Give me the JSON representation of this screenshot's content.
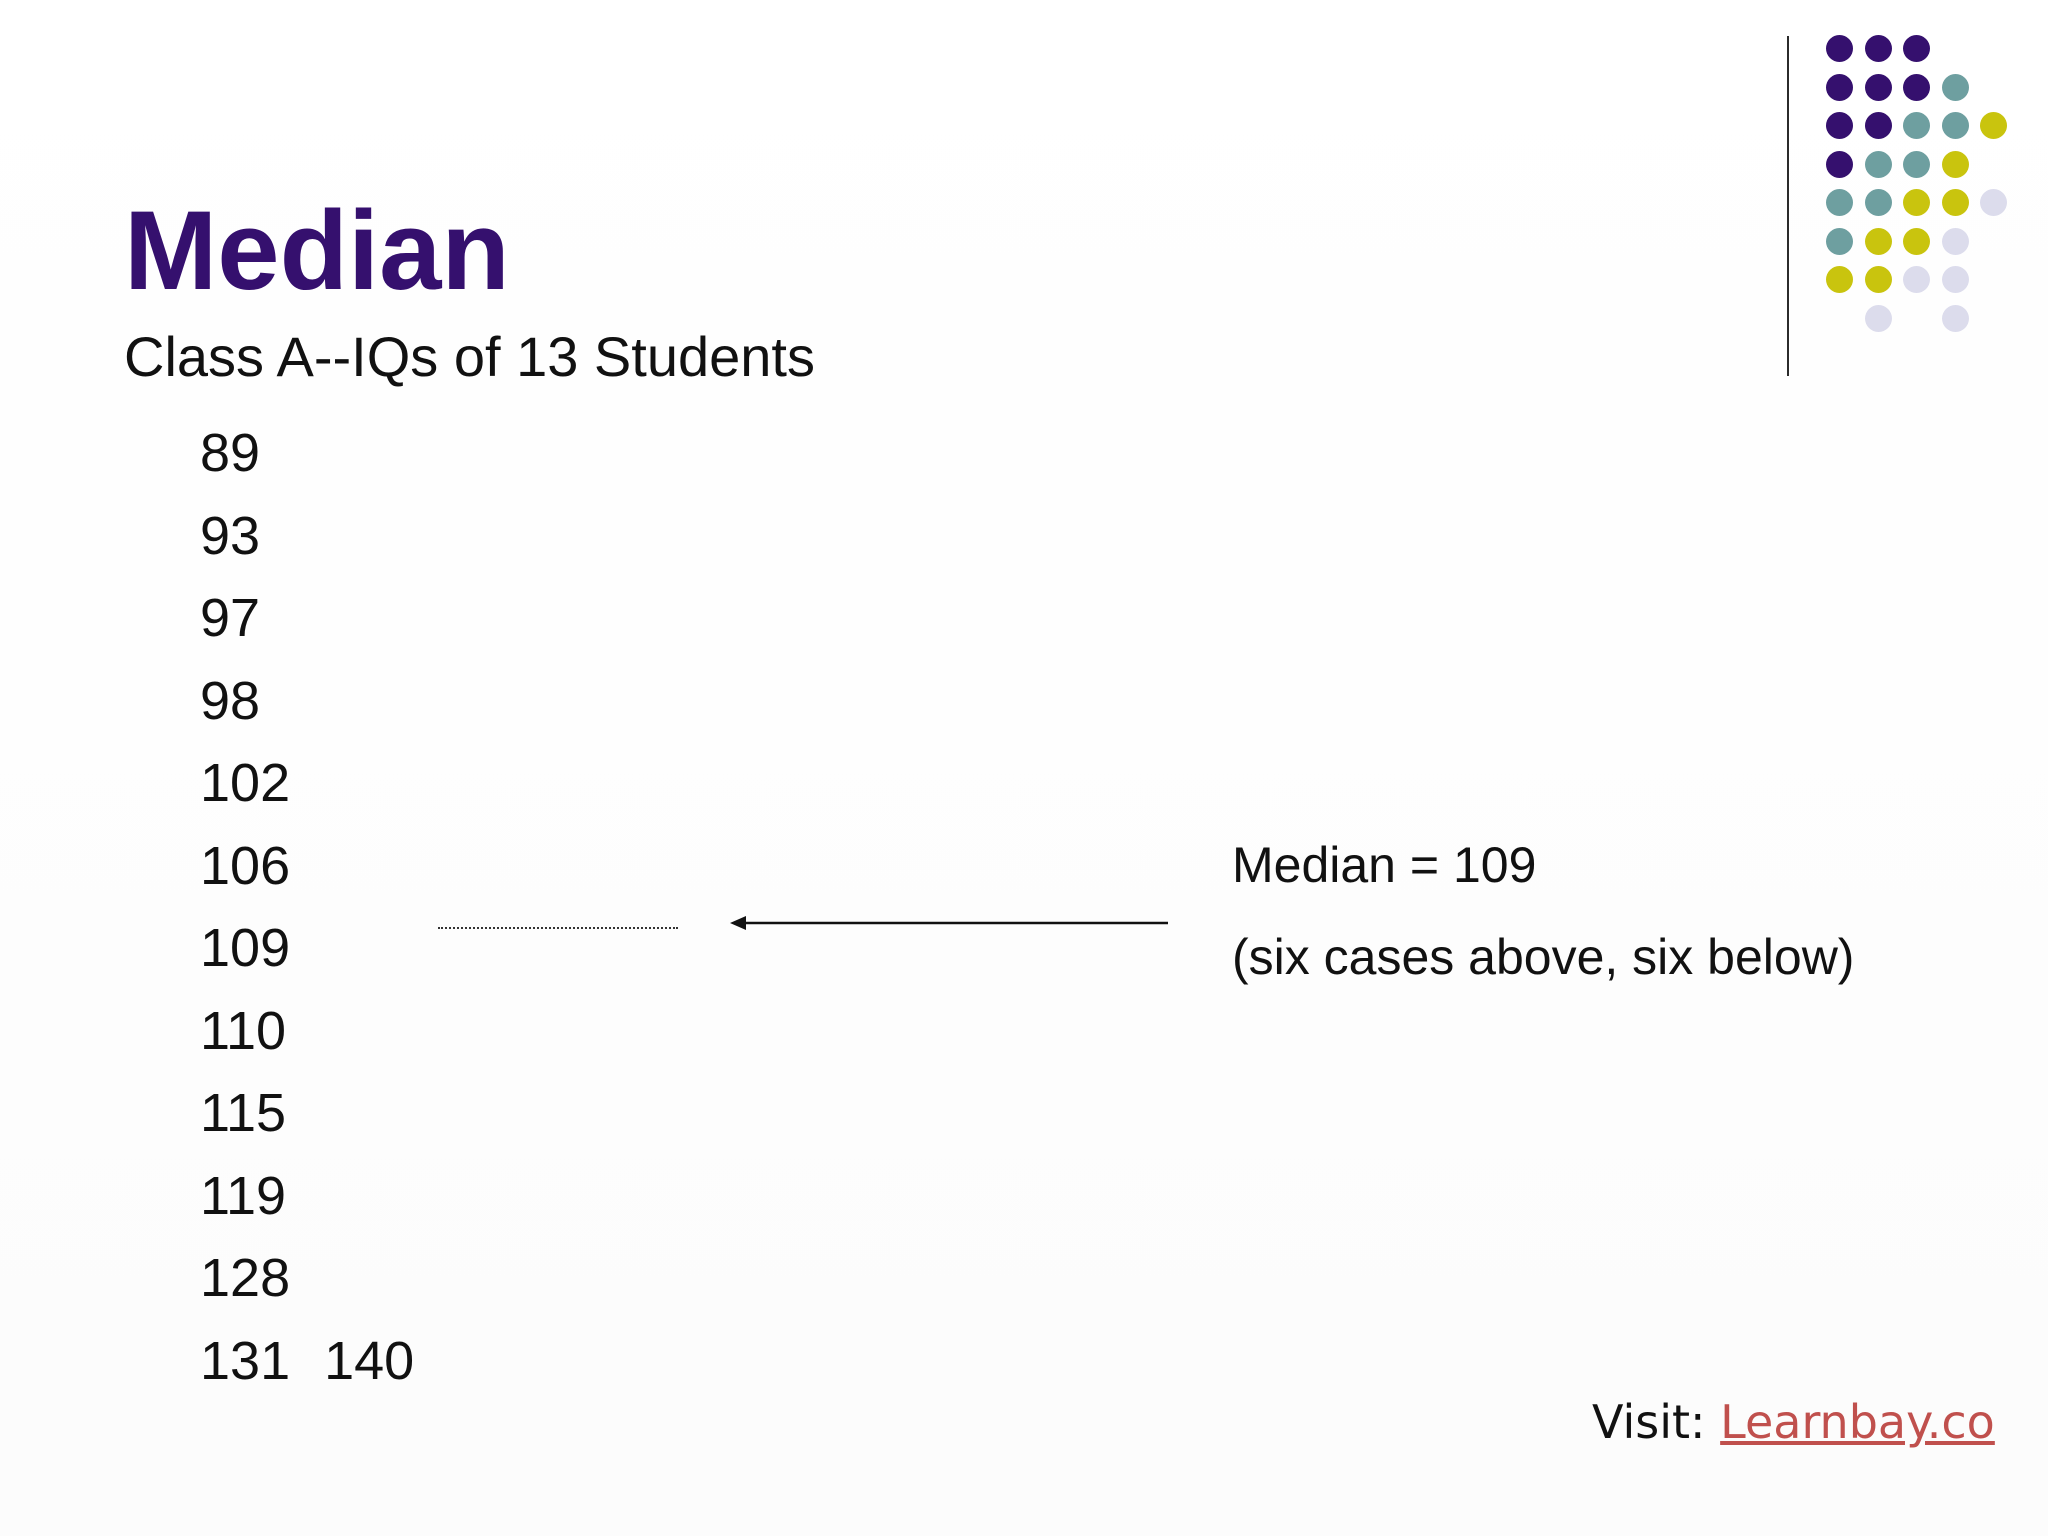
{
  "slide": {
    "title": "Median",
    "subtitle": "Class A--IQs of 13 Students",
    "values": [
      "89",
      "93",
      "97",
      "98",
      "102",
      "106",
      "109",
      "110",
      "115",
      "119",
      "128",
      "131"
    ],
    "last_extra": "140",
    "annotation": {
      "line1": "Median = 109",
      "line2": "(six cases above, six below)"
    },
    "footer": {
      "prefix": "Visit: ",
      "link": "Learnbay.co"
    }
  },
  "colors": {
    "title": "#35106e",
    "purple": "#35106e",
    "teal": "#6e9fa0",
    "yellow": "#c9c40e",
    "lavender": "#dcdcec",
    "link": "#c0504d"
  },
  "decor": {
    "dot_grid": [
      [
        "purple",
        "purple",
        "purple",
        "",
        ""
      ],
      [
        "purple",
        "purple",
        "purple",
        "teal",
        ""
      ],
      [
        "purple",
        "purple",
        "teal",
        "teal",
        "yellow"
      ],
      [
        "purple",
        "teal",
        "teal",
        "yellow",
        ""
      ],
      [
        "teal",
        "teal",
        "yellow",
        "yellow",
        "lavender"
      ],
      [
        "teal",
        "yellow",
        "yellow",
        "lavender",
        ""
      ],
      [
        "yellow",
        "yellow",
        "lavender",
        "lavender",
        ""
      ],
      [
        "",
        "lavender",
        "",
        "lavender",
        ""
      ]
    ]
  }
}
